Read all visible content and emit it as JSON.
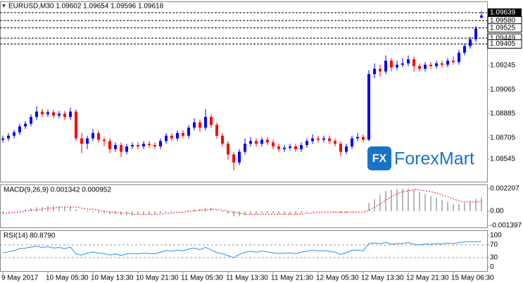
{
  "chart_data": [
    {
      "type": "candlestick",
      "title": "EURUSD,M30  1.09602 1.09654 1.09596 1.09618",
      "categories": [
        "9 May 2017",
        null,
        null,
        null,
        null,
        null,
        null,
        null,
        "10 May 05:30",
        null,
        null,
        null,
        null,
        null,
        null,
        null,
        "10 May 13:30",
        null,
        null,
        null,
        null,
        null,
        null,
        null,
        "10 May 21:30",
        null,
        null,
        null,
        null,
        null,
        null,
        null,
        "11 May 05:30",
        null,
        null,
        null,
        null,
        null,
        null,
        null,
        "11 May 13:30",
        null,
        null,
        null,
        null,
        null,
        null,
        null,
        "11 May 21:30",
        null,
        null,
        null,
        null,
        null,
        null,
        null,
        "12 May 05:30",
        null,
        null,
        null,
        null,
        null,
        null,
        null,
        "12 May 13:30",
        null,
        null,
        null,
        null,
        null,
        null,
        null,
        "12 May 21:30",
        null,
        null,
        null,
        null,
        null,
        null,
        null,
        "15 May 06:30",
        null,
        null,
        null,
        null,
        null
      ],
      "open": [
        1.0869,
        1.087,
        1.0872,
        1.08745,
        1.0879,
        1.0881,
        1.0886,
        1.089,
        1.0888,
        1.08895,
        1.0887,
        1.08885,
        1.0886,
        1.089,
        1.087,
        1.0866,
        1.087,
        1.0874,
        1.0869,
        1.0868,
        1.0862,
        1.0865,
        1.086,
        1.0864,
        1.0865,
        1.0864,
        1.0866,
        1.0865,
        1.0864,
        1.0868,
        1.0872,
        1.087,
        1.0874,
        1.0872,
        1.0878,
        1.0882,
        1.0878,
        1.0886,
        1.088,
        1.0872,
        1.0866,
        1.0858,
        1.0852,
        1.086,
        1.0866,
        1.0868,
        1.0866,
        1.0869,
        1.0867,
        1.0864,
        1.0862,
        1.0863,
        1.0864,
        1.0862,
        1.0865,
        1.0868,
        1.087,
        1.0869,
        1.087,
        1.0868,
        1.0866,
        1.086,
        1.0864,
        1.087,
        1.0871,
        1.0869,
        1.0918,
        1.0922,
        1.092,
        1.0928,
        1.0923,
        1.0925,
        1.0926,
        1.0929,
        1.0924,
        1.0922,
        1.0925,
        1.0924,
        1.0926,
        1.0925,
        1.0928,
        1.0927,
        1.0934,
        1.0939,
        1.0944,
        1.09602
      ],
      "high": [
        1.0872,
        1.0874,
        1.08765,
        1.0881,
        1.0883,
        1.0888,
        1.0894,
        1.0892,
        1.08915,
        1.08915,
        1.08905,
        1.08905,
        1.0893,
        1.0892,
        1.0874,
        1.0872,
        1.0877,
        1.0876,
        1.0871,
        1.087,
        1.0867,
        1.0867,
        1.0866,
        1.0867,
        1.0867,
        1.0868,
        1.0868,
        1.0867,
        1.087,
        1.0874,
        1.0874,
        1.0876,
        1.0876,
        1.088,
        1.0885,
        1.0884,
        1.0892,
        1.0888,
        1.0882,
        1.0874,
        1.0868,
        1.086,
        1.0862,
        1.087,
        1.0871,
        1.087,
        1.0871,
        1.0871,
        1.0869,
        1.0866,
        1.0865,
        1.0866,
        1.0866,
        1.0867,
        1.087,
        1.0873,
        1.0872,
        1.0872,
        1.0872,
        1.087,
        1.0868,
        1.0866,
        1.0872,
        1.0874,
        1.0873,
        1.0921,
        1.0926,
        1.0925,
        1.0932,
        1.093,
        1.0928,
        1.093,
        1.0932,
        1.0931,
        1.0926,
        1.0927,
        1.0927,
        1.0928,
        1.0928,
        1.093,
        1.0931,
        1.0936,
        1.0941,
        1.0946,
        1.0954,
        1.09654
      ],
      "low": [
        1.0867,
        1.0868,
        1.087,
        1.08725,
        1.0877,
        1.0879,
        1.0884,
        1.0886,
        1.0886,
        1.0885,
        1.0885,
        1.0884,
        1.0884,
        1.0868,
        1.0859,
        1.0862,
        1.0868,
        1.0867,
        1.0864,
        1.0859,
        1.086,
        1.0856,
        1.0858,
        1.0862,
        1.0862,
        1.0862,
        1.0863,
        1.0862,
        1.0862,
        1.0866,
        1.0868,
        1.0868,
        1.087,
        1.087,
        1.0876,
        1.0875,
        1.0876,
        1.0878,
        1.087,
        1.0864,
        1.0854,
        1.0846,
        1.085,
        1.0858,
        1.0864,
        1.0864,
        1.0864,
        1.0865,
        1.0862,
        1.086,
        1.086,
        1.0861,
        1.086,
        1.086,
        1.0863,
        1.0866,
        1.0867,
        1.0867,
        1.0866,
        1.0864,
        1.0857,
        1.0858,
        1.0862,
        1.0868,
        1.0867,
        1.0868,
        1.0915,
        1.0916,
        1.0918,
        1.092,
        1.0921,
        1.0923,
        1.0924,
        1.092,
        1.092,
        1.092,
        1.0922,
        1.0922,
        1.0923,
        1.0923,
        1.0925,
        1.0925,
        1.0932,
        1.0937,
        1.0942,
        1.09596
      ],
      "close": [
        1.087,
        1.0872,
        1.08745,
        1.0879,
        1.0881,
        1.0886,
        1.089,
        1.0888,
        1.08895,
        1.0887,
        1.08885,
        1.0886,
        1.089,
        1.087,
        1.0866,
        1.087,
        1.0874,
        1.0869,
        1.0868,
        1.0862,
        1.0865,
        1.086,
        1.0864,
        1.0865,
        1.0864,
        1.0866,
        1.0865,
        1.0864,
        1.0868,
        1.0872,
        1.087,
        1.0874,
        1.0872,
        1.0878,
        1.0882,
        1.0878,
        1.0886,
        1.088,
        1.0872,
        1.0866,
        1.0858,
        1.0852,
        1.086,
        1.0866,
        1.0868,
        1.0866,
        1.0869,
        1.0867,
        1.0864,
        1.0862,
        1.0863,
        1.0864,
        1.0862,
        1.0865,
        1.0868,
        1.087,
        1.0869,
        1.087,
        1.0868,
        1.0866,
        1.086,
        1.0864,
        1.087,
        1.0871,
        1.0869,
        1.0918,
        1.0922,
        1.092,
        1.0928,
        1.0923,
        1.0925,
        1.0926,
        1.0929,
        1.0924,
        1.0922,
        1.0925,
        1.0924,
        1.0926,
        1.0925,
        1.0928,
        1.0927,
        1.0934,
        1.0939,
        1.0944,
        1.0952,
        1.09618
      ],
      "up_color": "#0000ff",
      "down_color": "#ff0000",
      "ylim": [
        1.08377,
        1.09723
      ],
      "yticks": [
        1.08545,
        1.08705,
        1.08885,
        1.09065,
        1.09245
      ],
      "levels": [
        {
          "value": 1.0958,
          "label": "1.09580"
        },
        1.09525,
        1.09449,
        1.09405
      ],
      "current_price": 1.09639,
      "watermark_icon": "FX",
      "watermark": "ForexMart"
    },
    {
      "type": "macd",
      "title": "MACD(9,26,9) 0.001342 0.000952",
      "values": [
        -0.0002,
        -0.0001,
        0,
        0.0001,
        0.0002,
        0.0003,
        0.0004,
        0.0004,
        0.0005,
        0.0005,
        0.0005,
        0.0004,
        0.0005,
        0.0002,
        0,
        -0.0001,
        -0.0001,
        -0.0002,
        -0.0002,
        -0.0003,
        -0.0003,
        -0.0004,
        -0.0004,
        -0.0004,
        -0.0003,
        -0.0003,
        -0.0003,
        -0.0003,
        -0.0002,
        -0.0001,
        -0.0001,
        0,
        0,
        0.0001,
        0.0002,
        0.0002,
        0.0003,
        0.0003,
        0.0001,
        -0.0001,
        -0.0003,
        -0.0005,
        -0.0005,
        -0.0004,
        -0.0003,
        -0.0003,
        -0.0002,
        -0.0002,
        -0.0002,
        -0.0003,
        -0.0003,
        -0.0003,
        -0.0003,
        -0.0002,
        -0.0001,
        -0.0001,
        0,
        0,
        0,
        -0.0001,
        -0.0002,
        -0.0002,
        -0.0001,
        0,
        0,
        0.0008,
        0.0012,
        0.0016,
        0.002,
        0.0021,
        0.0022,
        0.0022,
        0.0022,
        0.0021,
        0.0019,
        0.0017,
        0.0015,
        0.0013,
        0.0011,
        0.0009,
        0.0007,
        0.0007,
        0.0008,
        0.001,
        0.0012,
        0.001342
      ],
      "signal": [
        -0.0002,
        -0.0002,
        -0.0001,
        -0.0001,
        0,
        0.0001,
        0.0001,
        0.0002,
        0.0003,
        0.0003,
        0.0004,
        0.0004,
        0.0004,
        0.0004,
        0.0003,
        0.0002,
        0.0002,
        0.0001,
        0,
        -0.0001,
        -0.0001,
        -0.0002,
        -0.0002,
        -0.0003,
        -0.0003,
        -0.0003,
        -0.0003,
        -0.0003,
        -0.0003,
        -0.0002,
        -0.0002,
        -0.0001,
        -0.0001,
        0,
        0,
        0.0001,
        0.0001,
        0.0002,
        0.0002,
        0.0001,
        0,
        -0.0001,
        -0.0002,
        -0.0003,
        -0.0003,
        -0.0003,
        -0.0003,
        -0.0003,
        -0.0003,
        -0.0003,
        -0.0003,
        -0.0003,
        -0.0003,
        -0.0003,
        -0.0002,
        -0.0002,
        -0.0001,
        -0.0001,
        -0.0001,
        -0.0001,
        -0.0001,
        -0.0001,
        -0.0001,
        -0.0001,
        -0.0001,
        0.0001,
        0.0004,
        0.0007,
        0.0011,
        0.0014,
        0.0017,
        0.0019,
        0.002,
        0.0021,
        0.0021,
        0.002,
        0.0019,
        0.0018,
        0.0016,
        0.0014,
        0.0012,
        0.001,
        0.0009,
        0.0009,
        0.0009,
        0.000952
      ],
      "color": "#a0a0a0",
      "signal_color": "#ff0000",
      "ylim": [
        -0.00159,
        0.00262
      ],
      "yticks": [
        0.002207,
        {
          "value": 0,
          "label": "0.00"
        },
        -0.001397
      ]
    },
    {
      "type": "rsi",
      "title": "RSI(14) 80.8790",
      "values": [
        45,
        48,
        52,
        58,
        60,
        63,
        66,
        62,
        64,
        60,
        62,
        58,
        63,
        42,
        38,
        44,
        48,
        44,
        43,
        38,
        42,
        37,
        42,
        43,
        42,
        44,
        43,
        42,
        47,
        52,
        50,
        54,
        51,
        57,
        60,
        55,
        62,
        54,
        46,
        42,
        36,
        30,
        40,
        47,
        50,
        47,
        51,
        48,
        45,
        43,
        44,
        45,
        43,
        47,
        50,
        53,
        51,
        52,
        50,
        47,
        40,
        46,
        53,
        54,
        51,
        74,
        76,
        74,
        78,
        72,
        74,
        75,
        77,
        72,
        70,
        73,
        72,
        74,
        73,
        76,
        74,
        77,
        79,
        80,
        80,
        80.879
      ],
      "color": "#1e90ff",
      "ylim": [
        -12,
        116
      ],
      "yticks": [
        100,
        70,
        30,
        0
      ],
      "levels": [
        70,
        30
      ]
    }
  ]
}
